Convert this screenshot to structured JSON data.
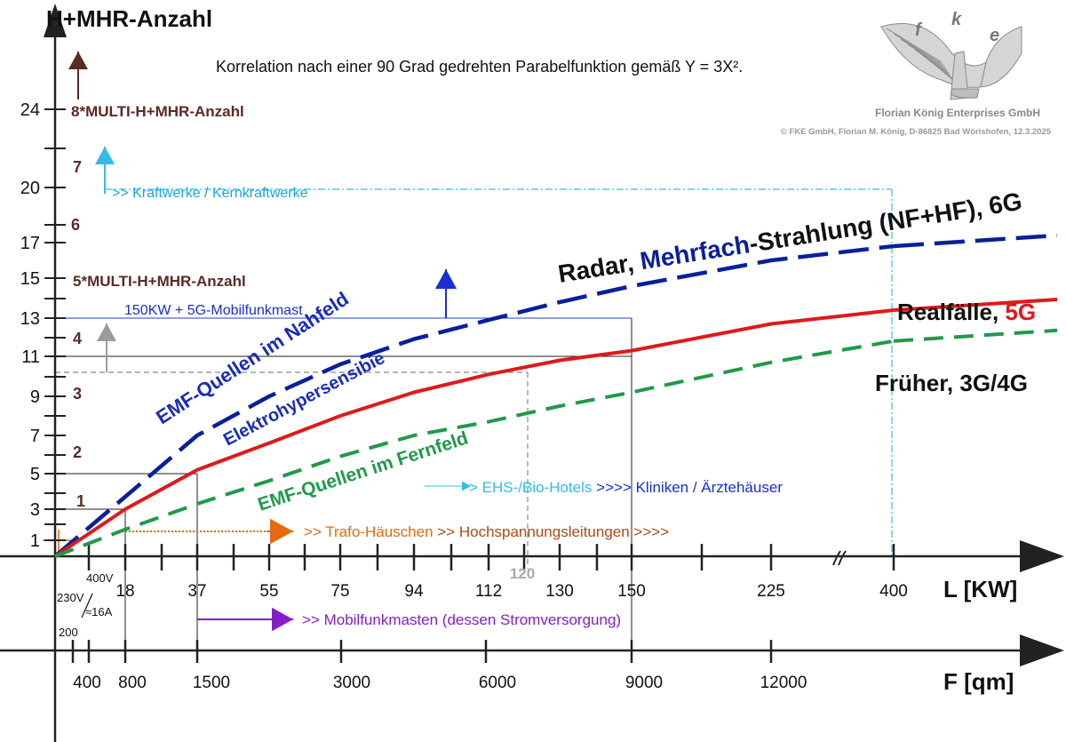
{
  "chart_data": {
    "type": "line",
    "title": "Korrelation nach einer 90 Grad gedrehten Parabelfunktion gemäß Y = 3X².",
    "ylabel": "H+MHR-Anzahl",
    "xlabel": "L [KW]",
    "x2label": "F [qm]",
    "y_ticks": [
      "24",
      "20",
      "17",
      "15",
      "13",
      "11",
      "9",
      "7",
      "5",
      "3",
      "1"
    ],
    "multi_labels": [
      "8*MULTI-H+MHR-Anzahl",
      "7",
      "6",
      "5*MULTI-H+MHR-Anzahl",
      "4",
      "3",
      "2",
      "1"
    ],
    "x_ticks": [
      "18",
      "37",
      "55",
      "75",
      "94",
      "112",
      "130",
      "150",
      "225",
      "400"
    ],
    "x_extra_labels": {
      "lower": "400V",
      "upper_a": "230V",
      "ratio": "≈16A",
      "bottom": "200",
      "gray": "120"
    },
    "area_ticks": [
      "400",
      "800",
      "1500",
      "3000",
      "6000",
      "9000",
      "12000"
    ],
    "series": [
      {
        "name": "Radar, Mehrfach-Strahlung (NF+HF), 6G",
        "name_parts": [
          "Radar, ",
          "Mehrfach",
          "-Strahlung (NF+HF), 6G"
        ],
        "style": "dashed",
        "color": "#0a1f9c",
        "points": [
          [
            0,
            0
          ],
          [
            18,
            3.7
          ],
          [
            37,
            7
          ],
          [
            55,
            9
          ],
          [
            75,
            10.6
          ],
          [
            94,
            11.9
          ],
          [
            112,
            12.9
          ],
          [
            130,
            13.8
          ],
          [
            150,
            14.6
          ],
          [
            225,
            16
          ],
          [
            400,
            16.8
          ]
        ]
      },
      {
        "name": "Realfälle, 5G",
        "name_parts": [
          "Realfälle, ",
          "5G"
        ],
        "style": "solid",
        "color": "#e0191b",
        "points": [
          [
            0,
            0
          ],
          [
            18,
            3
          ],
          [
            37,
            5.2
          ],
          [
            55,
            6.6
          ],
          [
            75,
            8
          ],
          [
            94,
            9.2
          ],
          [
            112,
            10.1
          ],
          [
            130,
            10.8
          ],
          [
            150,
            11.3
          ],
          [
            225,
            12.7
          ],
          [
            400,
            13.4
          ]
        ]
      },
      {
        "name": "Früher, 3G/4G",
        "style": "dashed",
        "color": "#1f9a4a",
        "points": [
          [
            0,
            0
          ],
          [
            18,
            1.7
          ],
          [
            37,
            3.3
          ],
          [
            55,
            4.6
          ],
          [
            75,
            5.9
          ],
          [
            94,
            7
          ],
          [
            112,
            7.7
          ],
          [
            130,
            8.5
          ],
          [
            150,
            9.2
          ],
          [
            225,
            10.7
          ],
          [
            400,
            11.8
          ]
        ]
      }
    ],
    "curve_annotations": [
      "EMF-Quellen im Nahfeld",
      "Elektrohypersensibie",
      "EMF-Quellen im Fernfeld"
    ],
    "annotations": {
      "kraftwerke": ">> Kraftwerke / Kernkraftwerke",
      "mast_5g": "150KW + 5G-Mobilfunkmast",
      "hotels_a": "> EHS-/Bio-Hotels",
      "hotels_b": " >>>> Kliniken / Ärztehäuser",
      "trafo_a": ">> Trafo-Häuschen",
      "trafo_b": " >> Hochspannungsleitungen >>>>",
      "mobilfunk": ">> Mobilfunkmasten (dessen Stromversorgung)"
    },
    "grid": false,
    "legend": "inline"
  },
  "logo": {
    "letters": [
      "f",
      "k",
      "e"
    ],
    "company": "Florian König Enterprises GmbH",
    "copyright": "© FKE GmbH, Florian M. König, D-86825 Bad Wörishofen, 12.3.2025"
  },
  "colors": {
    "axis": "#222222",
    "brown": "#5a2a25",
    "cyan": "#33bde6",
    "blue_line": "#2a3cd6",
    "orange": "#e36a10",
    "purple": "#8a1cc8",
    "gray": "#9b9b9b",
    "logo": "#8b8b8b"
  }
}
